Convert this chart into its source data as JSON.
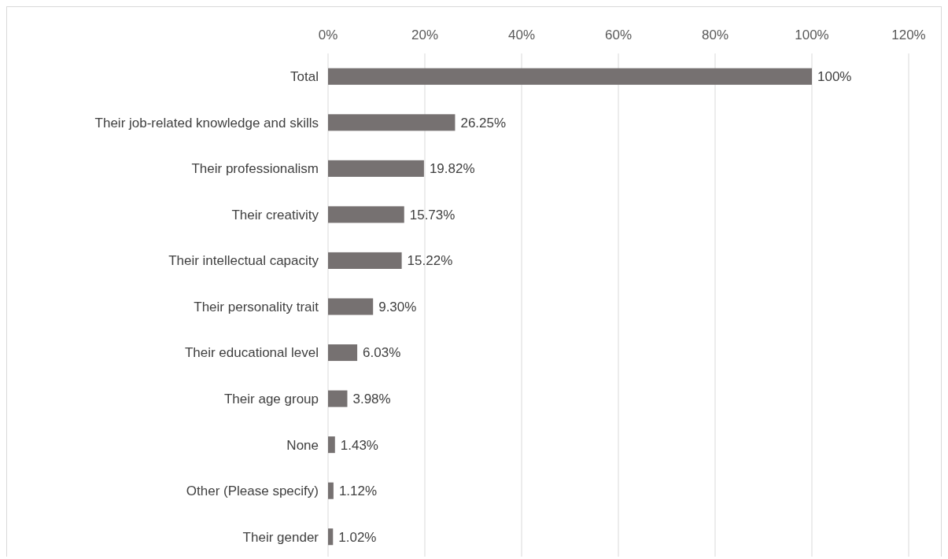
{
  "chart_data": {
    "type": "bar",
    "orientation": "horizontal",
    "categories": [
      "Total",
      "Their job-related knowledge and skills",
      "Their professionalism",
      "Their creativity",
      "Their intellectual capacity",
      "Their personality trait",
      "Their educational level",
      "Their age group",
      "None",
      "Other (Please specify)",
      "Their gender"
    ],
    "values": [
      100,
      26.25,
      19.82,
      15.73,
      15.22,
      9.3,
      6.03,
      3.98,
      1.43,
      1.12,
      1.02
    ],
    "value_labels": [
      "100%",
      "26.25%",
      "19.82%",
      "15.73%",
      "15.22%",
      "9.30%",
      "6.03%",
      "3.98%",
      "1.43%",
      "1.12%",
      "1.02%"
    ],
    "color": "#767171",
    "xlim": [
      0,
      120
    ],
    "xticks": [
      {
        "value": 0,
        "label": "0%"
      },
      {
        "value": 20,
        "label": "20%"
      },
      {
        "value": 40,
        "label": "40%"
      },
      {
        "value": 60,
        "label": "60%"
      },
      {
        "value": 80,
        "label": "80%"
      },
      {
        "value": 100,
        "label": "100%"
      },
      {
        "value": 120,
        "label": "120%"
      }
    ],
    "grid": "x"
  }
}
